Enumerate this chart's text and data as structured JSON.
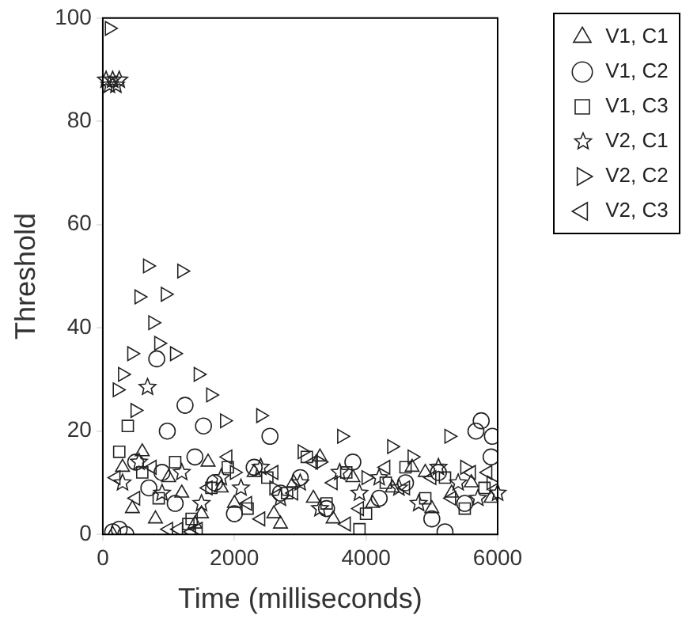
{
  "chart_data": {
    "type": "scatter",
    "xlabel": "Time (milliseconds)",
    "ylabel": "Threshold",
    "xlim": [
      0,
      6000
    ],
    "xticks": [
      0,
      2000,
      4000,
      6000
    ],
    "ylim": [
      0,
      100
    ],
    "yticks": [
      0,
      20,
      40,
      60,
      80,
      100
    ],
    "grid": false,
    "legend": "right",
    "series": [
      {
        "name": "V1, C1",
        "marker": "triangle",
        "color": "#222222",
        "x": [
          150,
          300,
          450,
          600,
          800,
          1000,
          1200,
          1400,
          1600,
          1800,
          2000,
          2300,
          2600,
          2900,
          3200,
          3500,
          3800,
          4100,
          4400,
          4700,
          5000,
          5300,
          5600,
          5900,
          2700,
          3300,
          4900,
          1500
        ],
        "values": [
          0,
          13,
          5,
          16,
          3,
          11,
          8,
          2,
          14,
          9,
          6,
          12,
          4,
          10,
          7,
          3,
          11,
          6,
          9,
          13,
          5,
          8,
          10,
          7,
          2,
          15,
          12,
          4
        ]
      },
      {
        "name": "V1, C2",
        "marker": "circle",
        "color": "#222222",
        "x": [
          820,
          1250,
          1530,
          980,
          2540,
          5750,
          5670,
          5920,
          5200,
          5000,
          150,
          250,
          350,
          500,
          700,
          900,
          1100,
          1400,
          1700,
          2000,
          2300,
          2700,
          3000,
          3400,
          3800,
          4200,
          4600,
          5100,
          5500,
          5900
        ],
        "values": [
          34,
          25,
          21,
          20,
          19,
          22,
          20,
          19,
          0.5,
          3,
          0.5,
          1,
          0,
          14,
          9,
          12,
          6,
          15,
          10,
          4,
          13,
          8,
          11,
          5,
          14,
          7,
          10,
          12,
          6,
          15
        ]
      },
      {
        "name": "V1, C3",
        "marker": "square",
        "color": "#222222",
        "x": [
          380,
          250,
          600,
          850,
          1100,
          1350,
          1650,
          1900,
          2200,
          2500,
          2800,
          3100,
          3400,
          3700,
          4000,
          4300,
          4600,
          4900,
          5200,
          5500,
          5800,
          1300,
          3900
        ],
        "values": [
          21,
          16,
          12,
          7,
          14,
          3,
          9,
          13,
          5,
          11,
          8,
          15,
          6,
          12,
          4,
          10,
          13,
          7,
          11,
          5,
          9,
          2,
          1
        ]
      },
      {
        "name": "V2, C1",
        "marker": "star",
        "color": "#222222",
        "x": [
          50,
          100,
          150,
          200,
          250,
          680,
          300,
          550,
          900,
          1200,
          1500,
          1800,
          2100,
          2400,
          2700,
          3000,
          3300,
          3600,
          3900,
          4200,
          4500,
          4800,
          5100,
          5400,
          5700,
          6000
        ],
        "values": [
          88,
          87,
          88,
          87,
          88,
          28.5,
          10,
          14,
          8,
          12,
          6,
          11,
          9,
          13,
          7,
          10,
          5,
          12,
          8,
          11,
          9,
          6,
          13,
          10,
          7,
          8
        ]
      },
      {
        "name": "V2, C2",
        "marker": "triangle-right",
        "color": "#222222",
        "x": [
          100,
          680,
          1200,
          550,
          950,
          760,
          850,
          1090,
          440,
          1450,
          300,
          220,
          1640,
          490,
          2400,
          1850,
          3630,
          4390,
          5260,
          3030,
          2000,
          2600,
          3300,
          4000,
          4700,
          5500,
          5900
        ],
        "values": [
          98,
          52,
          51,
          46,
          46.5,
          41,
          37,
          35,
          35,
          31,
          31,
          28,
          27,
          24,
          23,
          22,
          19,
          17,
          19,
          16,
          12,
          9,
          14,
          11,
          15,
          13,
          10
        ]
      },
      {
        "name": "V2, C3",
        "marker": "triangle-left",
        "color": "#222222",
        "x": [
          1000,
          1150,
          1350,
          1450,
          2400,
          3700,
          200,
          500,
          750,
          1600,
          1900,
          2200,
          2600,
          2900,
          3200,
          3500,
          3900,
          4300,
          4600,
          5000,
          5300,
          5600,
          5850
        ],
        "values": [
          1,
          1,
          0.5,
          1,
          3,
          2,
          11,
          7,
          13,
          9,
          15,
          6,
          12,
          8,
          14,
          10,
          5,
          13,
          9,
          11,
          7,
          12,
          12
        ]
      }
    ]
  }
}
